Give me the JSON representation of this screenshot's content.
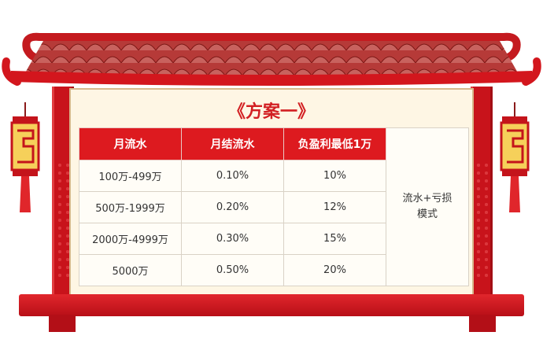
{
  "title": "《方案一》",
  "table": {
    "headers": [
      "月流水",
      "月结流水",
      "负盈利最低1万"
    ],
    "rows": [
      [
        "100万-499万",
        "0.10%",
        "10%"
      ],
      [
        "500万-1999万",
        "0.20%",
        "12%"
      ],
      [
        "2000万-4999万",
        "0.30%",
        "15%"
      ],
      [
        "5000万",
        "0.50%",
        "20%"
      ]
    ],
    "side_note": "流水+亏损模式"
  },
  "colors": {
    "accent_red": "#dd1a1f",
    "panel_bg": "#fef6e4",
    "title_red": "#d21f22"
  },
  "decorations": [
    "roof-tiles",
    "left-lantern",
    "right-lantern",
    "pillars"
  ]
}
